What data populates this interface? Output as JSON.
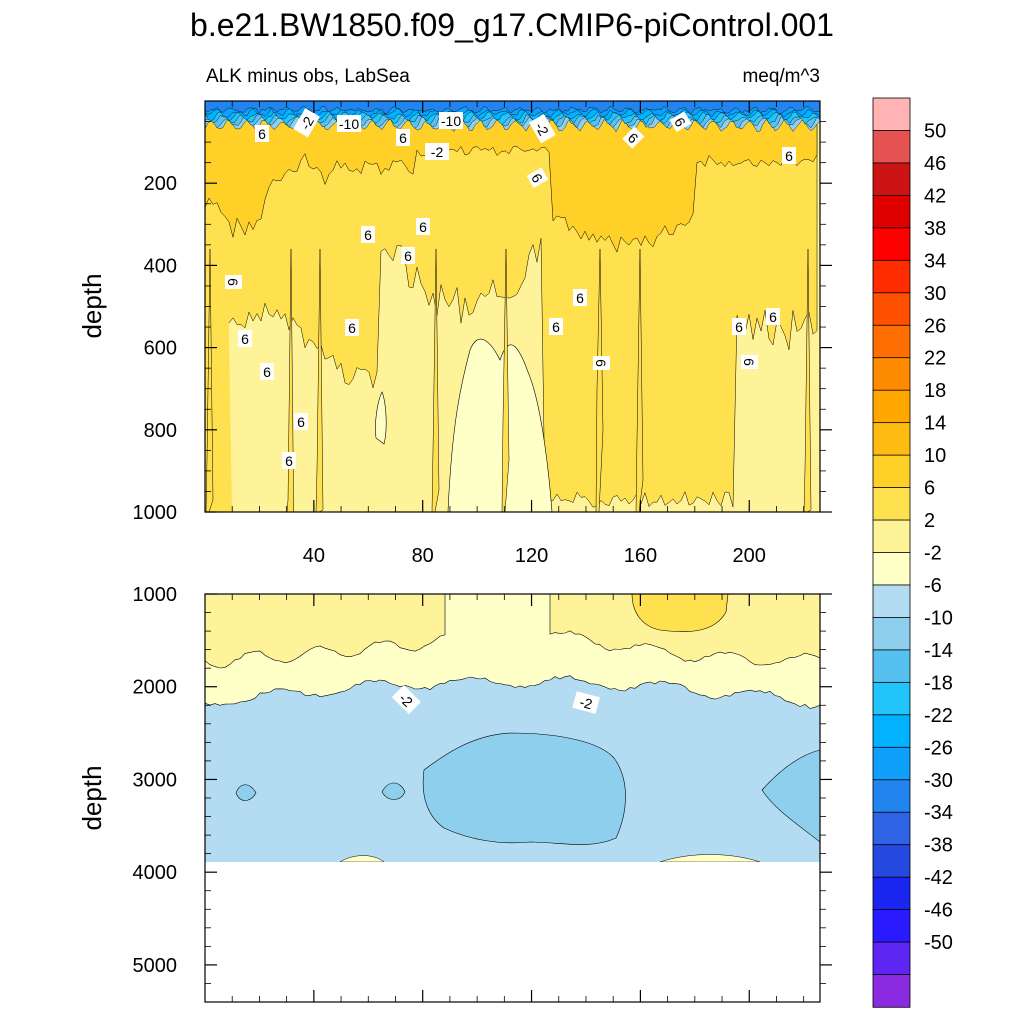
{
  "chart_data": {
    "type": "contour",
    "title": "b.e21.BW1850.f09_g17.CMIP6-piControl.001",
    "left_string": "ALK minus obs, LabSea",
    "right_string": "meq/m^3",
    "ylabel": "depth",
    "colors": {
      "land": "#ffffff",
      "line": "#000000",
      "palette": [
        "#8a2be2",
        "#5d26f2",
        "#2a1aff",
        "#1a26f0",
        "#2448e0",
        "#2f62e4",
        "#2284ee",
        "#0fa0fb",
        "#00b2ff",
        "#21c4fb",
        "#56c0f0",
        "#8fcfee",
        "#b3dcf2",
        "#ffffc8",
        "#fff399",
        "#ffe14f",
        "#ffd028",
        "#ffbb12",
        "#ffa600",
        "#ff8c00",
        "#ff6e00",
        "#ff5000",
        "#ff2c00",
        "#ff0000",
        "#e00000",
        "#cc1414",
        "#e45252",
        "#ffb3b3"
      ]
    },
    "colorbar": {
      "levels": [
        "50",
        "46",
        "42",
        "38",
        "34",
        "30",
        "26",
        "22",
        "18",
        "14",
        "10",
        "6",
        "2",
        "-2",
        "-6",
        "-10",
        "-14",
        "-18",
        "-22",
        "-26",
        "-30",
        "-34",
        "-38",
        "-42",
        "-46",
        "-50"
      ]
    },
    "upper_panel": {
      "ylim": [
        1000,
        0
      ],
      "xlim": [
        0,
        226
      ],
      "x_ticks": [
        "40",
        "80",
        "120",
        "160",
        "200"
      ],
      "y_ticks": [
        "200",
        "400",
        "600",
        "800",
        "1000"
      ],
      "contour_labels": [
        "-2",
        "-10",
        "-10",
        "-2",
        "-2",
        "6",
        "6",
        "6",
        "6",
        "6",
        "6",
        "6",
        "6",
        "6",
        "6",
        "6",
        "6",
        "6",
        "6",
        "6",
        "6",
        "6",
        "6",
        "6",
        "6",
        "6"
      ]
    },
    "lower_panel": {
      "ylim": [
        5400,
        1000
      ],
      "xlim": [
        0,
        226
      ],
      "y_ticks": [
        "1000",
        "2000",
        "3000",
        "4000",
        "5000"
      ],
      "contour_labels": [
        "-2",
        "-2"
      ]
    },
    "field_summary": {
      "upper": "Near-surface layer (0-30 m) strongly negative (below -10) with many contour lines; 30-150 m band of 10-14; 150-600 m mostly 6-10 with columns of 2-6 near x 80-130; 600-1000 m mostly 2-6 with a -2 to 2 core near x 95-125 and 6-10 column near x 150-190.",
      "lower": "1000-2000 m mostly 2-6 on flanks and -2 to 2 in the middle; -2 contour near 2000-2200 m; below that -2 to -6 everywhere with -6 to -10 patches near x 80-150 (2500-3600 m) and at the edges; below ~3870 m land (white)."
    }
  }
}
